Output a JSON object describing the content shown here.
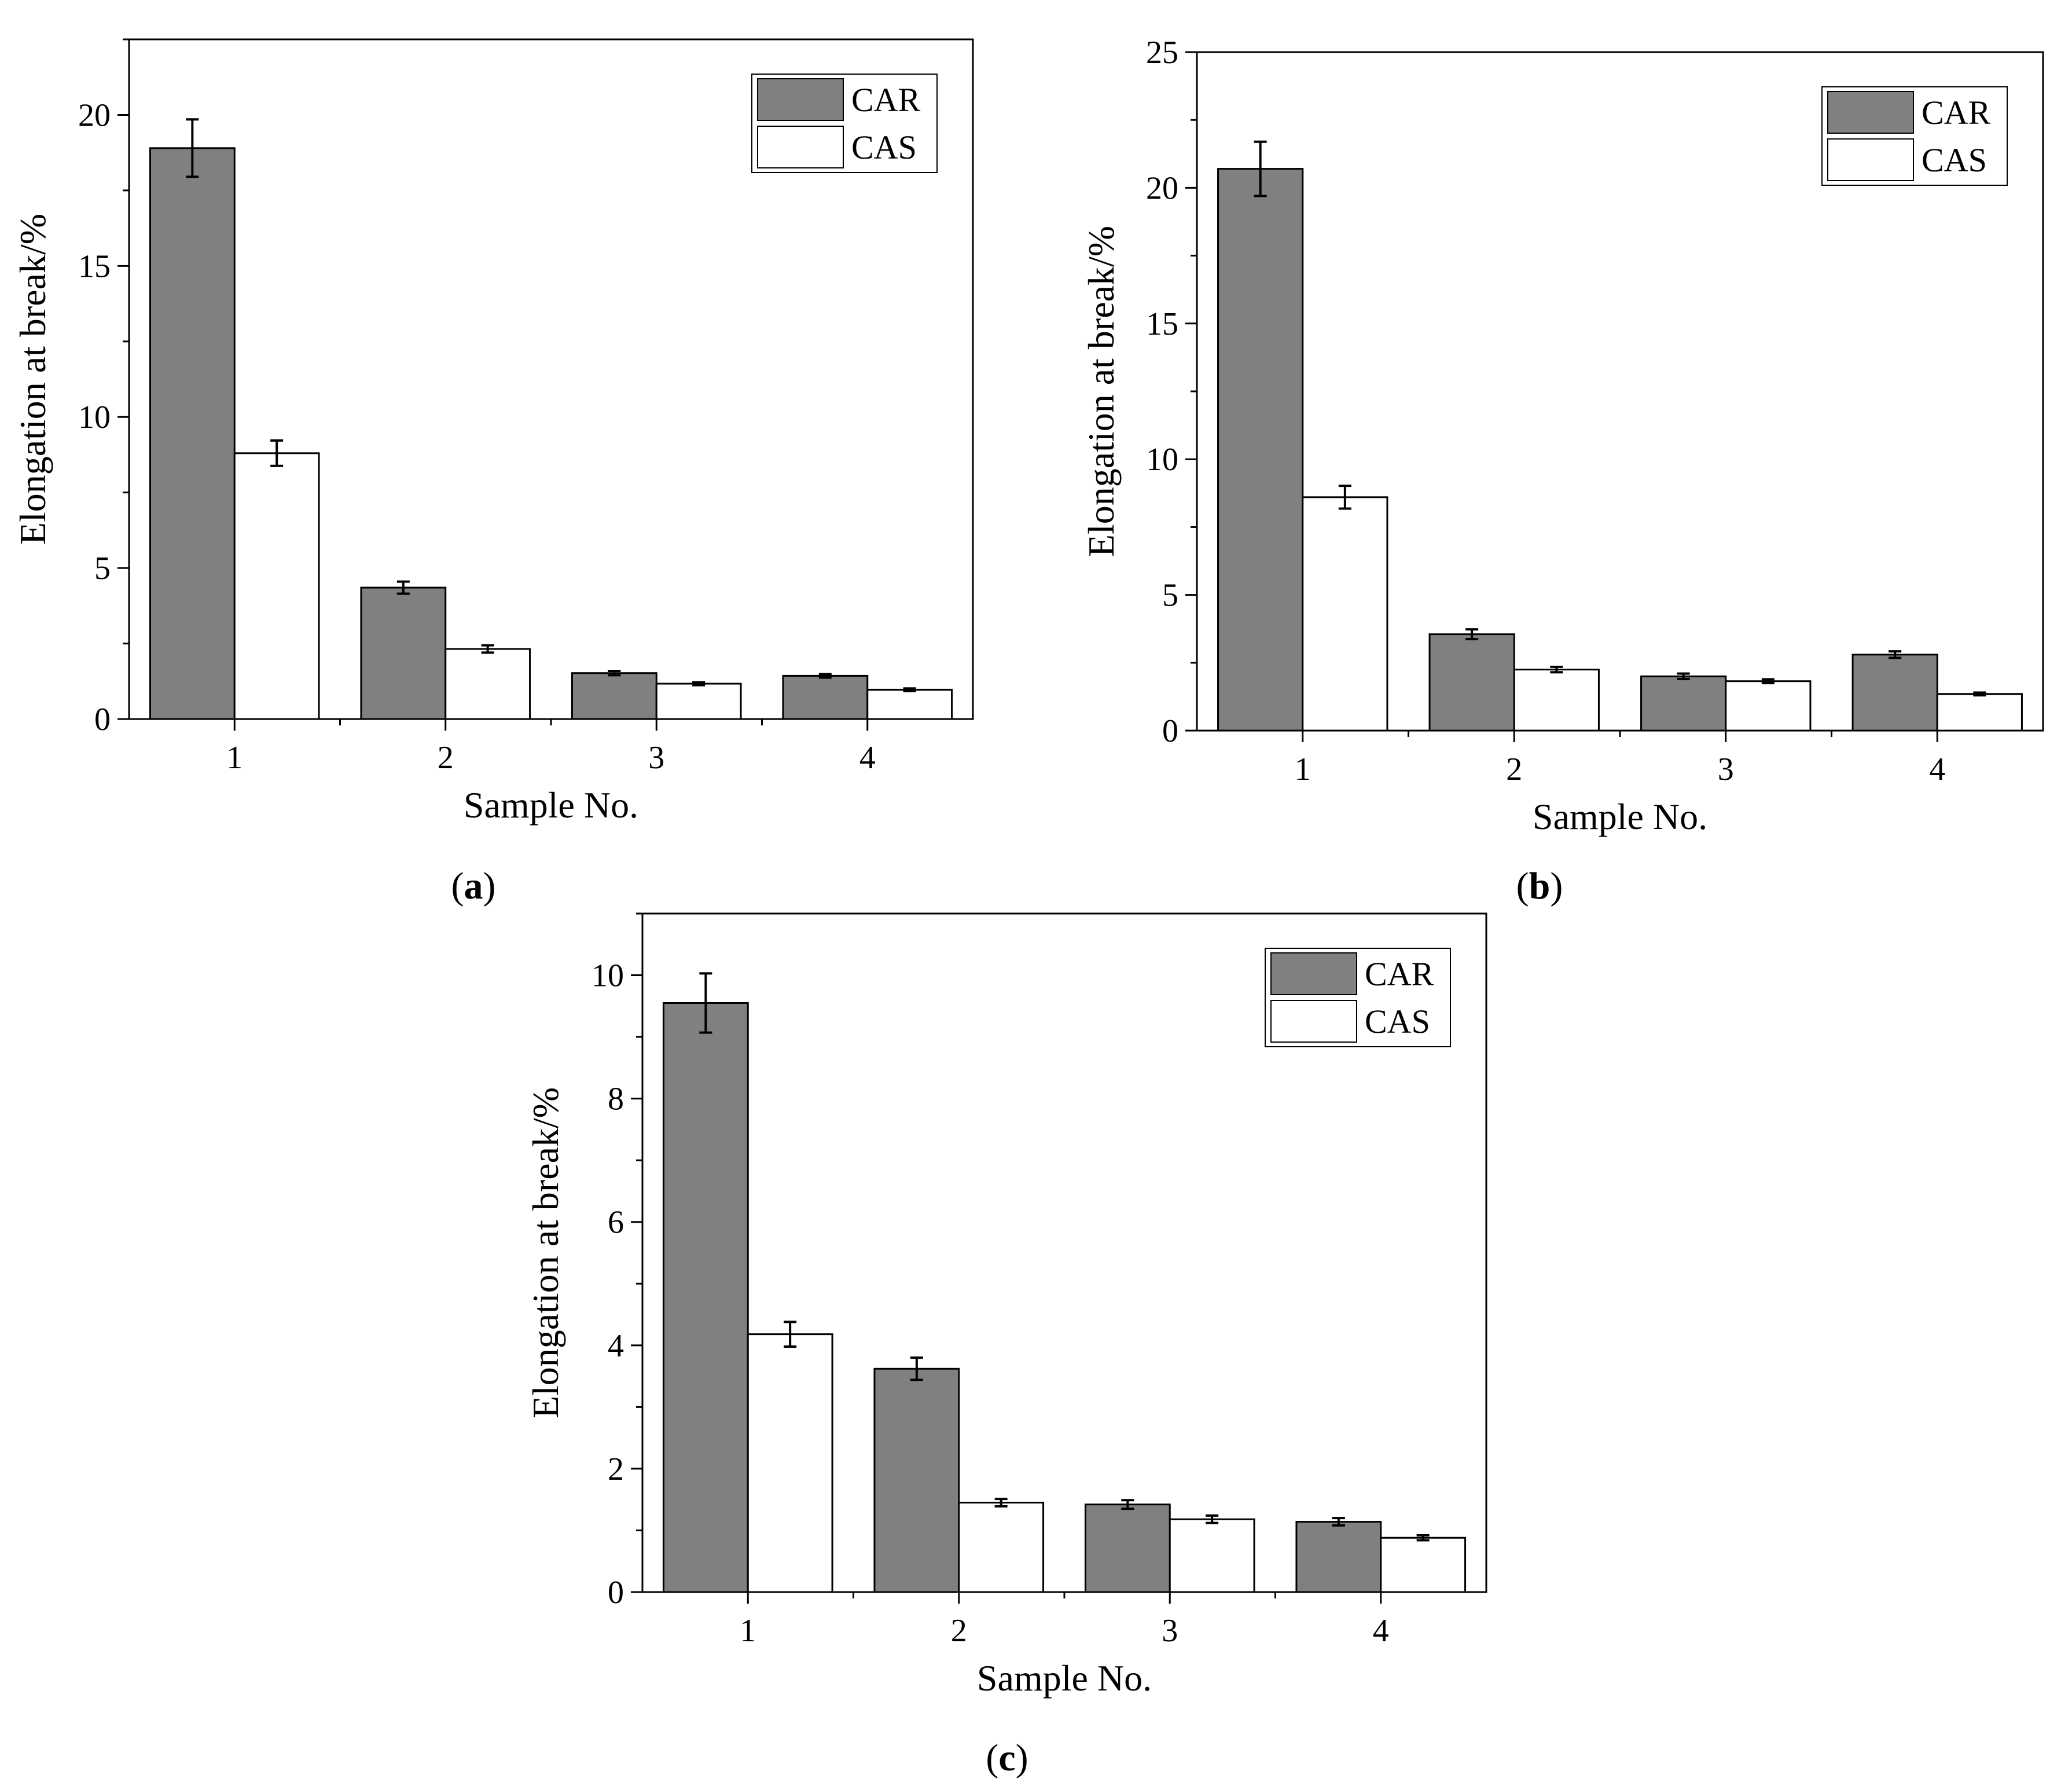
{
  "colors": {
    "car_fill": "#808080",
    "cas_fill": "#ffffff",
    "stroke": "#000000"
  },
  "chart_data": [
    {
      "panel": "a",
      "caption": {
        "open": "(",
        "letter": "a",
        "close": ")"
      },
      "type": "bar",
      "xlabel": "Sample No.",
      "ylabel": "Elongation at break/%",
      "categories": [
        "1",
        "2",
        "3",
        "4"
      ],
      "ylim": [
        0,
        22.5
      ],
      "yticks": [
        0,
        5,
        10,
        15,
        20
      ],
      "legend": "top-right",
      "series": [
        {
          "name": "CAR",
          "values": [
            18.9,
            4.35,
            1.52,
            1.43
          ],
          "errors": [
            0.95,
            0.2,
            0.07,
            0.06
          ]
        },
        {
          "name": "CAS",
          "values": [
            8.8,
            2.32,
            1.17,
            0.97
          ],
          "errors": [
            0.42,
            0.12,
            0.05,
            0.04
          ]
        }
      ]
    },
    {
      "panel": "b",
      "caption": {
        "open": "(",
        "letter": "b",
        "close": ")"
      },
      "type": "bar",
      "xlabel": "Sample No.",
      "ylabel": "Elongation at break/%",
      "categories": [
        "1",
        "2",
        "3",
        "4"
      ],
      "ylim": [
        0,
        25
      ],
      "yticks": [
        0,
        5,
        10,
        15,
        20,
        25
      ],
      "legend": "top-right",
      "series": [
        {
          "name": "CAR",
          "values": [
            20.7,
            3.55,
            2.0,
            2.8
          ],
          "errors": [
            1.0,
            0.18,
            0.1,
            0.12
          ]
        },
        {
          "name": "CAS",
          "values": [
            8.6,
            2.25,
            1.82,
            1.35
          ],
          "errors": [
            0.42,
            0.1,
            0.07,
            0.05
          ]
        }
      ]
    },
    {
      "panel": "c",
      "caption": {
        "open": "(",
        "letter": "c",
        "close": ")"
      },
      "type": "bar",
      "xlabel": "Sample No.",
      "ylabel": "Elongation at break/%",
      "categories": [
        "1",
        "2",
        "3",
        "4"
      ],
      "ylim": [
        0,
        11
      ],
      "yticks": [
        0,
        2,
        4,
        6,
        8,
        10
      ],
      "legend": "top-right",
      "series": [
        {
          "name": "CAR",
          "values": [
            9.55,
            3.62,
            1.42,
            1.14
          ],
          "errors": [
            0.48,
            0.18,
            0.07,
            0.06
          ]
        },
        {
          "name": "CAS",
          "values": [
            4.18,
            1.45,
            1.18,
            0.88
          ],
          "errors": [
            0.2,
            0.06,
            0.06,
            0.04
          ]
        }
      ]
    }
  ]
}
